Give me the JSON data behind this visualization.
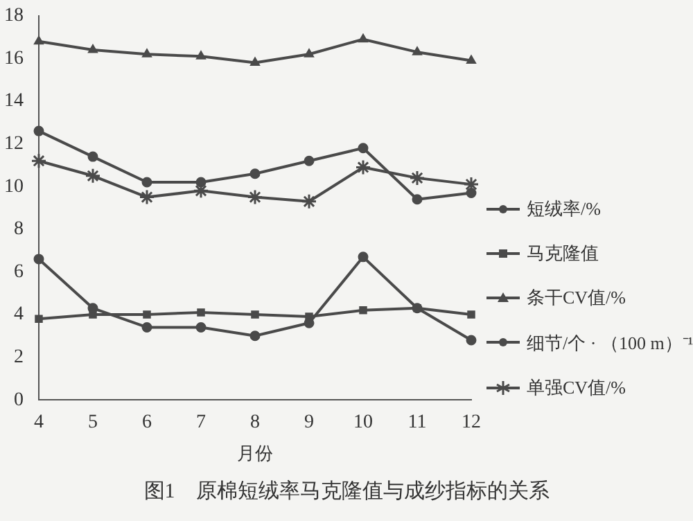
{
  "chart_data": {
    "type": "line",
    "title": "图1　原棉短绒率马克隆值与成纱指标的关系",
    "xlabel": "月份",
    "categories": [
      "4",
      "5",
      "6",
      "7",
      "8",
      "9",
      "10",
      "11",
      "12"
    ],
    "series": [
      {
        "name": "短绒率/%",
        "color": "#4a4a4a",
        "marker": "circle",
        "values": [
          12.6,
          11.4,
          10.2,
          10.2,
          10.6,
          11.2,
          11.8,
          9.4,
          9.7
        ]
      },
      {
        "name": "马克隆值",
        "color": "#4a4a4a",
        "marker": "square",
        "values": [
          3.8,
          4.0,
          4.0,
          4.1,
          4.0,
          3.9,
          4.2,
          4.3,
          4.0
        ]
      },
      {
        "name": "条干CV值/%",
        "color": "#4a4a4a",
        "marker": "triangle",
        "values": [
          16.8,
          16.4,
          16.2,
          16.1,
          15.8,
          16.2,
          16.9,
          16.3,
          15.9
        ]
      },
      {
        "name": "细节/个 · （100 m）⁻¹",
        "color": "#4a4a4a",
        "marker": "circle",
        "values": [
          6.6,
          4.3,
          3.4,
          3.4,
          3.0,
          3.6,
          6.7,
          4.3,
          2.8
        ]
      },
      {
        "name": "单强CV值/%",
        "color": "#4a4a4a",
        "marker": "cross",
        "values": [
          11.2,
          10.5,
          9.5,
          9.8,
          9.5,
          9.3,
          10.9,
          10.4,
          10.1
        ]
      }
    ],
    "ylim": [
      0,
      18
    ],
    "yticks": [
      0,
      2,
      4,
      6,
      8,
      10,
      12,
      14,
      16,
      18
    ],
    "grid": false,
    "legend": "right",
    "line_style": "solid"
  }
}
